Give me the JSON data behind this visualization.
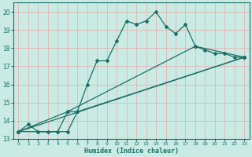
{
  "xlabel": "Humidex (Indice chaleur)",
  "xlim": [
    -0.5,
    23.5
  ],
  "ylim": [
    13,
    20.5
  ],
  "yticks": [
    13,
    14,
    15,
    16,
    17,
    18,
    19,
    20
  ],
  "xticks": [
    0,
    1,
    2,
    3,
    4,
    5,
    6,
    7,
    8,
    9,
    10,
    11,
    12,
    13,
    14,
    15,
    16,
    17,
    18,
    19,
    20,
    21,
    22,
    23
  ],
  "bg_color": "#caeae4",
  "grid_color": "#e8aaaa",
  "line_color": "#1a7068",
  "lines": [
    {
      "x": [
        0,
        1,
        2,
        3,
        4,
        5,
        6,
        7,
        8,
        9,
        10,
        11,
        12,
        13,
        14,
        15,
        16,
        17,
        18,
        19,
        20,
        21,
        22,
        23
      ],
      "y": [
        13.4,
        13.8,
        13.4,
        13.4,
        13.4,
        14.5,
        14.5,
        16.0,
        17.3,
        17.3,
        18.4,
        19.5,
        19.3,
        19.5,
        20.0,
        19.2,
        18.8,
        19.3,
        18.1,
        17.9,
        17.7,
        17.7,
        17.5,
        17.5
      ]
    },
    {
      "x": [
        0,
        23
      ],
      "y": [
        13.4,
        17.5
      ]
    },
    {
      "x": [
        0,
        5,
        6,
        23
      ],
      "y": [
        13.4,
        13.4,
        14.5,
        17.5
      ]
    },
    {
      "x": [
        0,
        5,
        18,
        23
      ],
      "y": [
        13.4,
        14.5,
        18.1,
        17.5
      ]
    }
  ]
}
